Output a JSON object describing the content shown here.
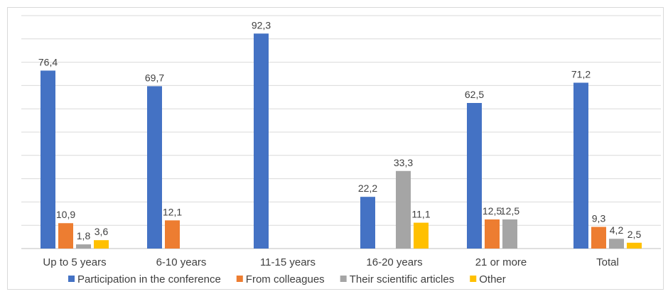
{
  "chart_data": {
    "type": "bar",
    "title": "",
    "xlabel": "",
    "ylabel": "",
    "ylim": [
      0,
      100
    ],
    "grid": true,
    "legend_position": "bottom",
    "categories": [
      "Up to 5 years",
      "6-10 years",
      "11-15 years",
      "16-20 years",
      "21 or more",
      "Total"
    ],
    "series": [
      {
        "name": "Participation in the conference",
        "color": "#4472C4",
        "values": [
          76.4,
          69.7,
          92.3,
          22.2,
          62.5,
          71.2
        ],
        "labels": [
          "76,4",
          "69,7",
          "92,3",
          "22,2",
          "62,5",
          "71,2"
        ]
      },
      {
        "name": "From colleagues",
        "color": "#ED7D31",
        "values": [
          10.9,
          12.1,
          null,
          null,
          12.5,
          9.3
        ],
        "labels": [
          "10,9",
          "12,1",
          null,
          null,
          "12,5",
          "9,3"
        ]
      },
      {
        "name": "Their scientific articles",
        "color": "#A5A5A5",
        "values": [
          1.8,
          null,
          null,
          33.3,
          12.5,
          4.2
        ],
        "labels": [
          "1,8",
          null,
          null,
          "33,3",
          "12,5",
          "4,2"
        ]
      },
      {
        "name": "Other",
        "color": "#FFC000",
        "values": [
          3.6,
          null,
          null,
          11.1,
          null,
          2.5
        ],
        "labels": [
          "3,6",
          null,
          null,
          "11,1",
          null,
          "2,5"
        ]
      }
    ]
  }
}
